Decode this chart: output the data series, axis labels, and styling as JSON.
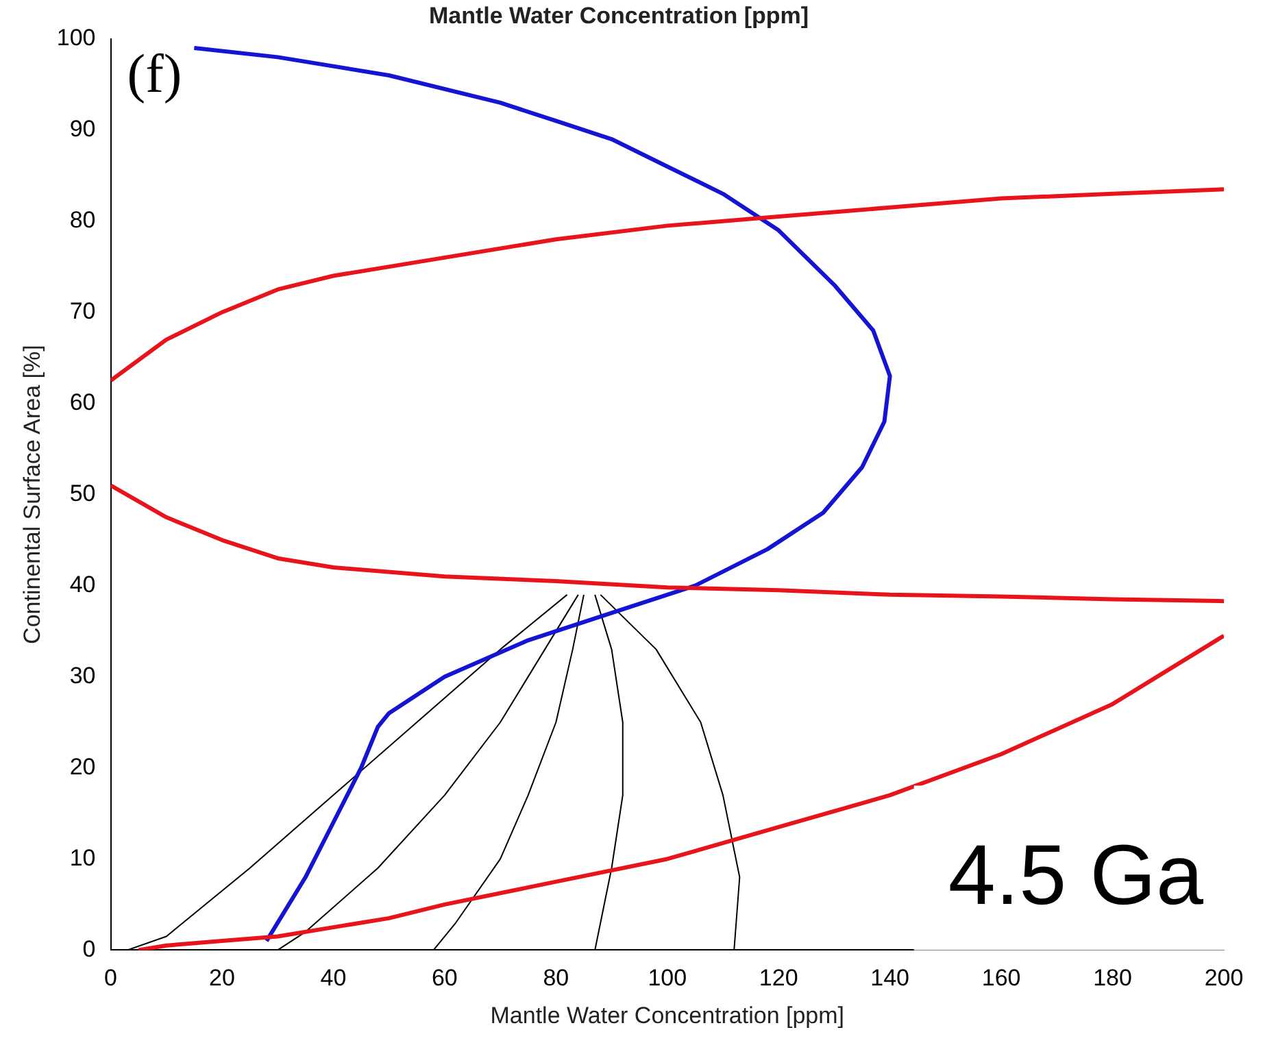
{
  "chart_data": {
    "type": "line",
    "title": "Mantle Water Concentration [ppm]",
    "xlabel": "Mantle Water Concentration [ppm]",
    "ylabel": "Continental Surface Area [%]",
    "xlim": [
      0,
      200
    ],
    "xticks": [
      0,
      20,
      40,
      60,
      80,
      100,
      120,
      140,
      160,
      180,
      200
    ],
    "ylim": [
      0,
      100
    ],
    "yticks": [
      0,
      10,
      20,
      30,
      40,
      50,
      60,
      70,
      80,
      90,
      100
    ],
    "grid": false,
    "legend": false,
    "marker": "none",
    "line_style": "solid",
    "annotations": [
      "(f)",
      "4.5 Ga"
    ],
    "series": [
      {
        "color": "#e8141c",
        "x": [
          0,
          10,
          20,
          30,
          40,
          60,
          80,
          100,
          120,
          140,
          160,
          180,
          200
        ],
        "values": [
          62.5,
          67,
          70,
          72.5,
          74,
          76,
          78,
          79.5,
          80.5,
          81.5,
          82.5,
          83,
          83.5
        ]
      },
      {
        "color": "#e8141c",
        "x": [
          0,
          10,
          20,
          30,
          40,
          60,
          80,
          100,
          120,
          140,
          160,
          180,
          200
        ],
        "values": [
          51,
          47.5,
          45,
          43,
          42,
          41,
          40.5,
          39.8,
          39.5,
          39,
          38.8,
          38.5,
          38.3
        ]
      },
      {
        "color": "#e8141c",
        "x": [
          5,
          10,
          20,
          30,
          40,
          50,
          60,
          80,
          100,
          120,
          140,
          160,
          180,
          200
        ],
        "values": [
          0,
          0.5,
          1,
          1.5,
          2.5,
          3.5,
          5,
          7.5,
          10,
          13.5,
          17,
          21.5,
          27,
          34.5
        ]
      },
      {
        "color": "#1414d2",
        "x": [
          15,
          30,
          50,
          70,
          80,
          90,
          100,
          110,
          120,
          130,
          137,
          140,
          139,
          135,
          128,
          118,
          105,
          90,
          75,
          60,
          50,
          48,
          45,
          40,
          35,
          28
        ],
        "values": [
          99,
          98,
          96,
          93,
          91,
          89,
          86,
          83,
          79,
          73,
          68,
          63,
          58,
          53,
          48,
          44,
          40,
          37,
          34,
          30,
          26,
          24.5,
          20,
          14,
          8,
          1
        ]
      },
      {
        "color": "#000000",
        "x": [
          82,
          70,
          55,
          40,
          25,
          10,
          3
        ],
        "values": [
          39,
          33,
          25,
          17,
          9,
          1.5,
          0
        ]
      },
      {
        "color": "#000000",
        "x": [
          84,
          78,
          70,
          60,
          48,
          35,
          30
        ],
        "values": [
          39,
          33,
          25,
          17,
          9,
          2,
          0
        ]
      },
      {
        "color": "#000000",
        "x": [
          85,
          83,
          80,
          75,
          70,
          62,
          58
        ],
        "values": [
          39,
          33,
          25,
          17,
          10,
          3,
          0
        ]
      },
      {
        "color": "#000000",
        "x": [
          87,
          90,
          92,
          92,
          90,
          88,
          87
        ],
        "values": [
          39,
          33,
          25,
          17,
          9,
          3,
          0
        ]
      },
      {
        "color": "#000000",
        "x": [
          88,
          98,
          106,
          110,
          113,
          112
        ],
        "values": [
          39,
          33,
          25,
          17,
          8,
          0
        ]
      }
    ]
  }
}
